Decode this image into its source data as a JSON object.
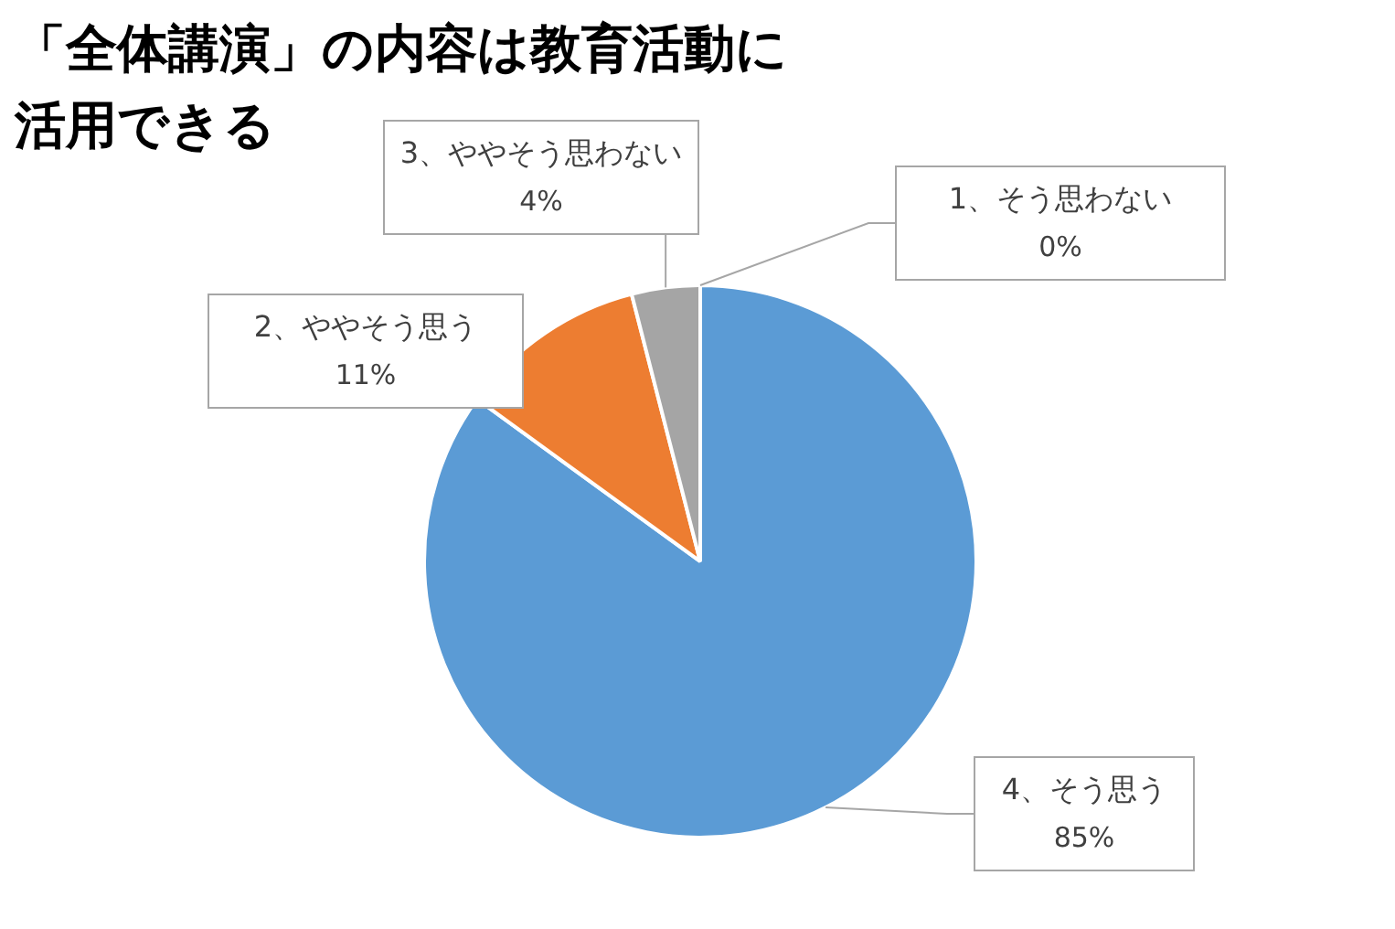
{
  "chart_data": {
    "type": "pie",
    "title": "「全体講演」の内容は教育活動に活用できる",
    "categories": [
      "4、そう思う",
      "2、ややそう思う",
      "3、ややそう思わない",
      "1、そう思わない"
    ],
    "values": [
      85,
      11,
      4,
      0
    ],
    "colors": [
      "#5b9bd5",
      "#ed7d31",
      "#a5a5a5",
      "#ffc000"
    ],
    "value_labels": [
      "85%",
      "11%",
      "4%",
      "0%"
    ],
    "legend": false
  }
}
